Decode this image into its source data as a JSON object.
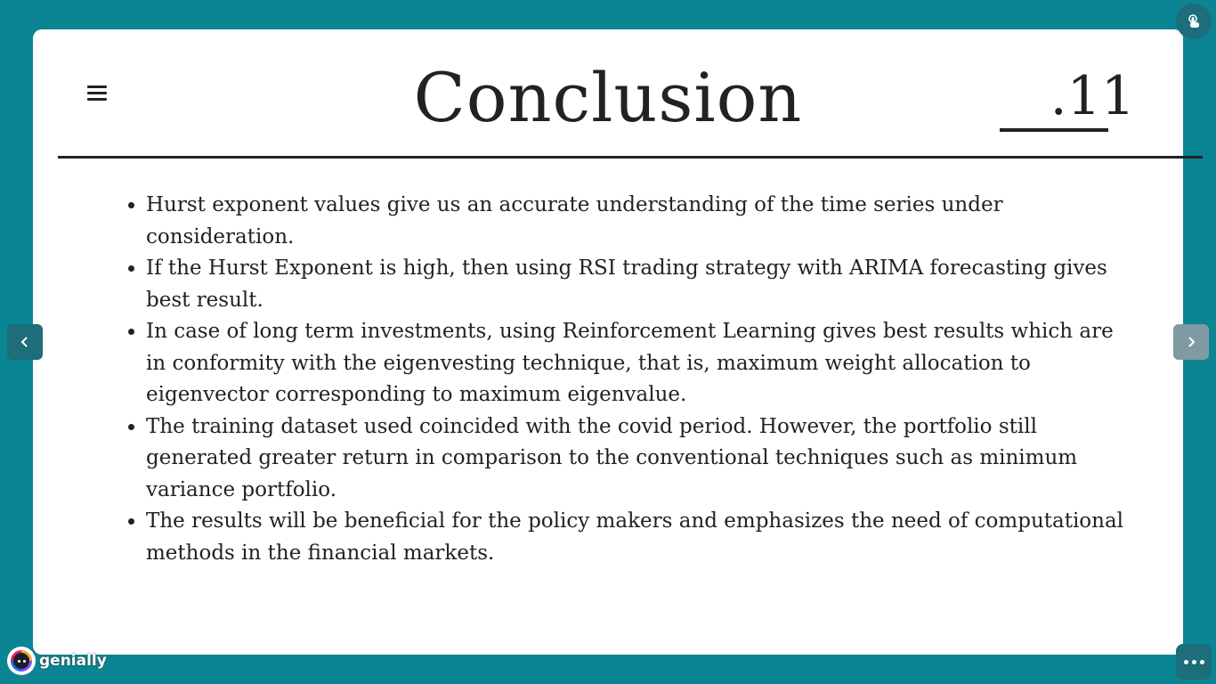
{
  "slide": {
    "title": "Conclusion",
    "page_number": ".11",
    "bullets": [
      "Hurst exponent values give us an accurate understanding of the time series under consideration.",
      "If the Hurst Exponent is high, then using RSI trading strategy with ARIMA forecasting gives best result.",
      "In case of long term investments, using Reinforcement Learning gives best results which are in conformity with the eigenvesting technique, that is, maximum weight allocation to eigenvector corresponding to maximum eigenvalue.",
      "The training dataset used coincided with the covid period. However, the portfolio still generated greater return in comparison to the conventional techniques such as minimum variance portfolio.",
      "The results will be beneficial for the policy makers and emphasizes the need of computational methods in the financial markets."
    ]
  },
  "controls": {
    "menu_icon": "hamburger-menu-icon",
    "prev_icon": "chevron-left-icon",
    "next_icon": "chevron-right-icon",
    "touch_icon": "touch-hand-icon",
    "more_icon": "more-dots-icon"
  },
  "brand": {
    "name": "genially"
  },
  "colors": {
    "background": "#0b8593",
    "slide": "#ffffff",
    "text": "#222222",
    "button": "#1d6d7a"
  }
}
